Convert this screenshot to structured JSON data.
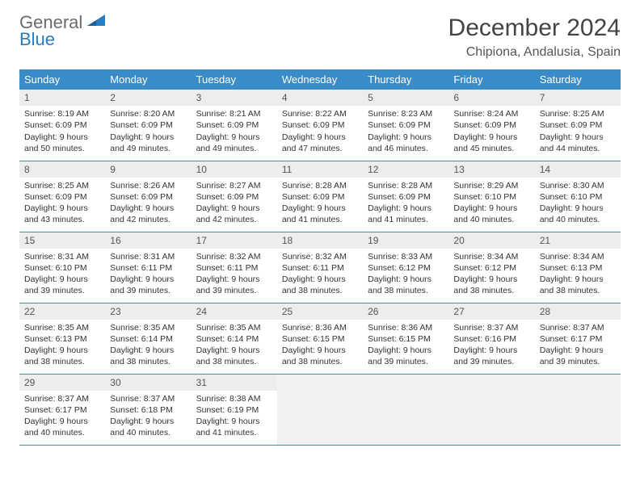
{
  "brand": {
    "line1": "General",
    "line2": "Blue"
  },
  "title": "December 2024",
  "location": "Chipiona, Andalusia, Spain",
  "colors": {
    "header_bg": "#3a8cc9",
    "header_text": "#ffffff",
    "daynum_bg": "#ededed",
    "border": "#3a8cc9",
    "empty_bg": "#f1f1f1",
    "body_text": "#333333",
    "brand_gray": "#6b6b6b",
    "brand_blue": "#2b7bbf"
  },
  "day_labels": [
    "Sunday",
    "Monday",
    "Tuesday",
    "Wednesday",
    "Thursday",
    "Friday",
    "Saturday"
  ],
  "weeks": [
    [
      {
        "n": "1",
        "sr": "8:19 AM",
        "ss": "6:09 PM",
        "dl": "9 hours and 50 minutes."
      },
      {
        "n": "2",
        "sr": "8:20 AM",
        "ss": "6:09 PM",
        "dl": "9 hours and 49 minutes."
      },
      {
        "n": "3",
        "sr": "8:21 AM",
        "ss": "6:09 PM",
        "dl": "9 hours and 49 minutes."
      },
      {
        "n": "4",
        "sr": "8:22 AM",
        "ss": "6:09 PM",
        "dl": "9 hours and 47 minutes."
      },
      {
        "n": "5",
        "sr": "8:23 AM",
        "ss": "6:09 PM",
        "dl": "9 hours and 46 minutes."
      },
      {
        "n": "6",
        "sr": "8:24 AM",
        "ss": "6:09 PM",
        "dl": "9 hours and 45 minutes."
      },
      {
        "n": "7",
        "sr": "8:25 AM",
        "ss": "6:09 PM",
        "dl": "9 hours and 44 minutes."
      }
    ],
    [
      {
        "n": "8",
        "sr": "8:25 AM",
        "ss": "6:09 PM",
        "dl": "9 hours and 43 minutes."
      },
      {
        "n": "9",
        "sr": "8:26 AM",
        "ss": "6:09 PM",
        "dl": "9 hours and 42 minutes."
      },
      {
        "n": "10",
        "sr": "8:27 AM",
        "ss": "6:09 PM",
        "dl": "9 hours and 42 minutes."
      },
      {
        "n": "11",
        "sr": "8:28 AM",
        "ss": "6:09 PM",
        "dl": "9 hours and 41 minutes."
      },
      {
        "n": "12",
        "sr": "8:28 AM",
        "ss": "6:09 PM",
        "dl": "9 hours and 41 minutes."
      },
      {
        "n": "13",
        "sr": "8:29 AM",
        "ss": "6:10 PM",
        "dl": "9 hours and 40 minutes."
      },
      {
        "n": "14",
        "sr": "8:30 AM",
        "ss": "6:10 PM",
        "dl": "9 hours and 40 minutes."
      }
    ],
    [
      {
        "n": "15",
        "sr": "8:31 AM",
        "ss": "6:10 PM",
        "dl": "9 hours and 39 minutes."
      },
      {
        "n": "16",
        "sr": "8:31 AM",
        "ss": "6:11 PM",
        "dl": "9 hours and 39 minutes."
      },
      {
        "n": "17",
        "sr": "8:32 AM",
        "ss": "6:11 PM",
        "dl": "9 hours and 39 minutes."
      },
      {
        "n": "18",
        "sr": "8:32 AM",
        "ss": "6:11 PM",
        "dl": "9 hours and 38 minutes."
      },
      {
        "n": "19",
        "sr": "8:33 AM",
        "ss": "6:12 PM",
        "dl": "9 hours and 38 minutes."
      },
      {
        "n": "20",
        "sr": "8:34 AM",
        "ss": "6:12 PM",
        "dl": "9 hours and 38 minutes."
      },
      {
        "n": "21",
        "sr": "8:34 AM",
        "ss": "6:13 PM",
        "dl": "9 hours and 38 minutes."
      }
    ],
    [
      {
        "n": "22",
        "sr": "8:35 AM",
        "ss": "6:13 PM",
        "dl": "9 hours and 38 minutes."
      },
      {
        "n": "23",
        "sr": "8:35 AM",
        "ss": "6:14 PM",
        "dl": "9 hours and 38 minutes."
      },
      {
        "n": "24",
        "sr": "8:35 AM",
        "ss": "6:14 PM",
        "dl": "9 hours and 38 minutes."
      },
      {
        "n": "25",
        "sr": "8:36 AM",
        "ss": "6:15 PM",
        "dl": "9 hours and 38 minutes."
      },
      {
        "n": "26",
        "sr": "8:36 AM",
        "ss": "6:15 PM",
        "dl": "9 hours and 39 minutes."
      },
      {
        "n": "27",
        "sr": "8:37 AM",
        "ss": "6:16 PM",
        "dl": "9 hours and 39 minutes."
      },
      {
        "n": "28",
        "sr": "8:37 AM",
        "ss": "6:17 PM",
        "dl": "9 hours and 39 minutes."
      }
    ],
    [
      {
        "n": "29",
        "sr": "8:37 AM",
        "ss": "6:17 PM",
        "dl": "9 hours and 40 minutes."
      },
      {
        "n": "30",
        "sr": "8:37 AM",
        "ss": "6:18 PM",
        "dl": "9 hours and 40 minutes."
      },
      {
        "n": "31",
        "sr": "8:38 AM",
        "ss": "6:19 PM",
        "dl": "9 hours and 41 minutes."
      },
      null,
      null,
      null,
      null
    ]
  ],
  "labels": {
    "sunrise": "Sunrise:",
    "sunset": "Sunset:",
    "daylight": "Daylight:"
  }
}
